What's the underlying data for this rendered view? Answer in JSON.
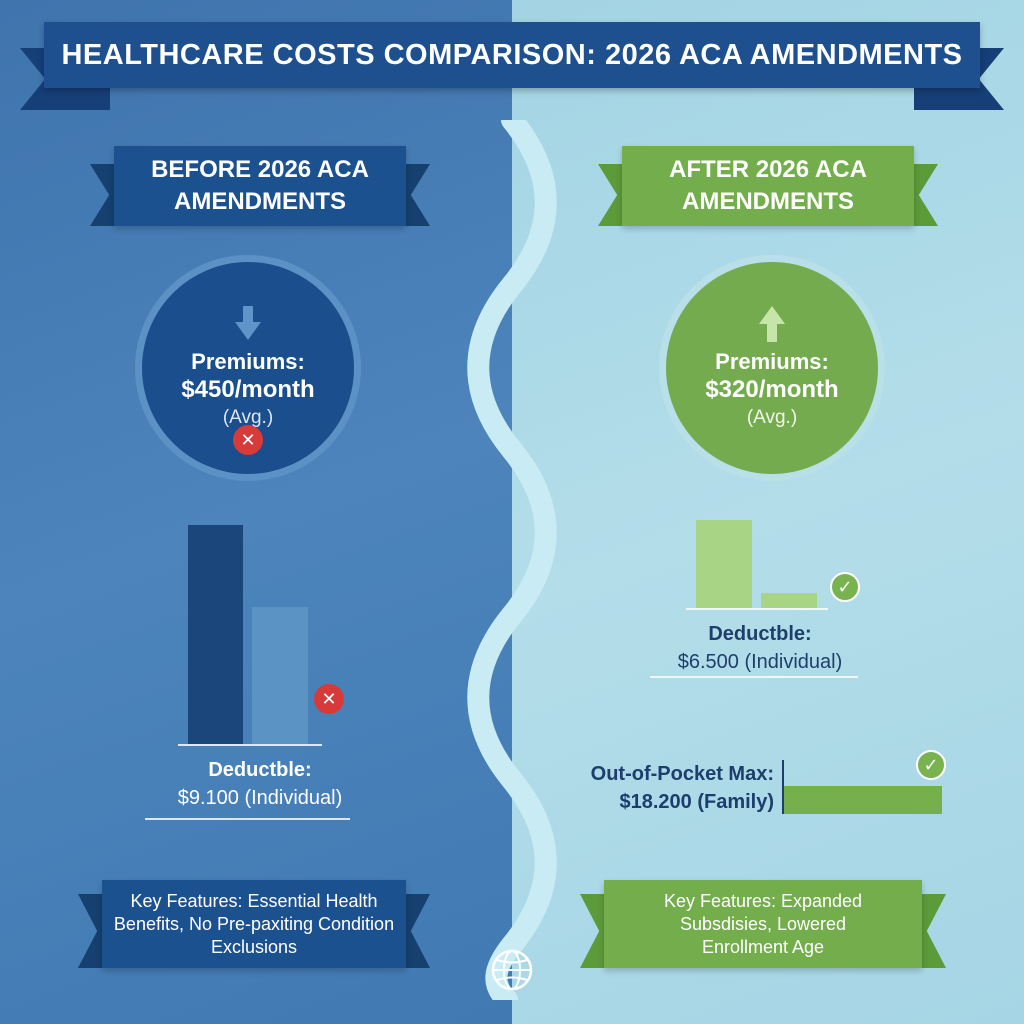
{
  "title": "HEALTHCARE COSTS COMPARISON: 2026 ACA AMENDMENTS",
  "colors": {
    "before_primary": "#1c5190",
    "after_primary": "#73ad4c",
    "error_badge": "#d83a3a",
    "check_badge": "#78b34f"
  },
  "before": {
    "heading": "BEFORE 2026 ACA AMENDMENTS",
    "premium_label": "Premiums:",
    "premium_value": "$450/month",
    "premium_note": "(Avg.)",
    "premium_icon": "arrow-down-icon",
    "status_icon": "x-icon",
    "deductible_label": "Deductble:",
    "deductible_value": "$9.100 (Individual)",
    "features": "Key Features: Essential Health Benefits, No Pre-paxiting Condition Exclusions"
  },
  "after": {
    "heading": "AFTER 2026 ACA AMENDMENTS",
    "premium_label": "Premiums:",
    "premium_value": "$320/month",
    "premium_note": "(Avg.)",
    "premium_icon": "arrow-up-icon",
    "status_icon": "check-icon",
    "deductible_label": "Deductble:",
    "deductible_value": "$6.500 (Individual)",
    "oop_label": "Out-of-Pocket Max:",
    "oop_value": "$18.200 (Family)",
    "features": "Key Features: Expanded Subsdisies, Lowered Enrollment Age"
  },
  "footer_icon": "globe-icon"
}
